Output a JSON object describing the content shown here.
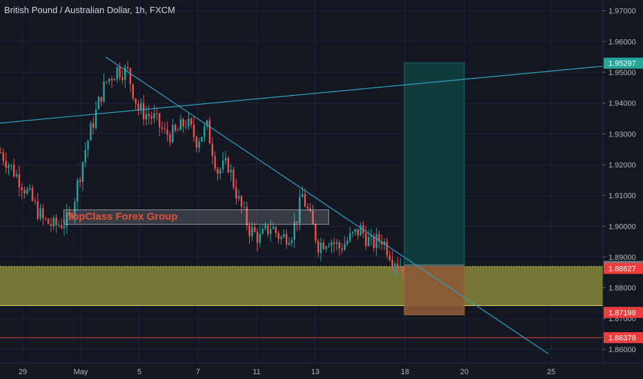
{
  "header": {
    "title": "British Pound / Australian Dollar, 1h, FXCM"
  },
  "watermark": {
    "label": "TopClass Forex Group"
  },
  "colors": {
    "background": "#131722",
    "grid": "#1f2535",
    "axis_text": "#b2b5be",
    "candle_up": "#26a69a",
    "candle_down": "#ef5350",
    "trendline": "#2fa3c4",
    "zone_fill": "#8b8738",
    "zone_border": "#d8d466",
    "target_fill": "#0f3b3c",
    "target_border": "#1d6e6a",
    "stop_fill": "#8a5a35",
    "badge_green": "#26a69a",
    "badge_red": "#ef3c3c",
    "badge_grey": "#787b86",
    "hline_red": "#ef3c3c"
  },
  "chart_data": {
    "type": "candlestick",
    "title": "British Pound / Australian Dollar, 1h, FXCM",
    "xlabel": "",
    "ylabel": "",
    "x_ticks": [
      "29",
      "May",
      "5",
      "7",
      "11",
      "13",
      "18",
      "20",
      "25"
    ],
    "y_ticks": [
      "1.97000",
      "1.96000",
      "1.95000",
      "1.94000",
      "1.93000",
      "1.92000",
      "1.91000",
      "1.90000",
      "1.89000",
      "1.88000",
      "1.87000",
      "1.86000"
    ],
    "ylim": [
      1.8555,
      1.9735
    ],
    "price_path": [
      [
        0,
        1.924
      ],
      [
        4,
        1.914
      ],
      [
        8,
        1.902
      ],
      [
        10,
        1.9
      ],
      [
        13,
        1.902
      ],
      [
        16,
        1.925
      ],
      [
        19,
        1.943
      ],
      [
        20,
        1.947
      ],
      [
        22,
        1.951
      ],
      [
        24,
        1.95
      ],
      [
        26,
        1.938
      ],
      [
        29,
        1.935
      ],
      [
        31,
        1.93
      ],
      [
        33,
        1.93
      ],
      [
        35,
        1.934
      ],
      [
        37,
        1.928
      ],
      [
        39,
        1.932
      ],
      [
        41,
        1.918
      ],
      [
        43,
        1.92
      ],
      [
        45,
        1.908
      ],
      [
        47,
        1.899
      ],
      [
        49,
        1.896
      ],
      [
        51,
        1.9
      ],
      [
        53,
        1.896
      ],
      [
        55,
        1.898
      ],
      [
        56,
        1.903
      ],
      [
        57,
        1.91
      ],
      [
        58,
        1.905
      ],
      [
        60,
        1.894
      ],
      [
        62,
        1.896
      ],
      [
        64,
        1.893
      ],
      [
        66,
        1.896
      ],
      [
        68,
        1.899
      ],
      [
        70,
        1.894
      ],
      [
        72,
        1.896
      ],
      [
        74,
        1.89
      ],
      [
        76,
        1.887
      ]
    ],
    "annotations": {
      "watermark_box": {
        "text": "TopClass Forex Group",
        "price_top": 1.9055,
        "price_bottom": 1.9005
      },
      "demand_zone": {
        "price_top": 1.8869,
        "price_bottom": 1.8742
      },
      "long_position": {
        "entry": 1.8869,
        "target": 1.9531,
        "stop": 1.8712
      },
      "horizontal_line": {
        "price": 1.86378
      },
      "trendlines": [
        {
          "name": "ascending",
          "from": {
            "x": "29",
            "y": 1.9335
          },
          "to": {
            "x": "25",
            "y": 1.952
          }
        },
        {
          "name": "descending",
          "from": {
            "x": "May",
            "y": 1.955
          },
          "to": {
            "x": "25",
            "y": 1.8585
          }
        }
      ]
    },
    "price_labels": [
      {
        "value": "1.95297",
        "color": "#26a69a"
      },
      {
        "value": "1.88692",
        "color": "#787b86"
      },
      {
        "value": "1.88627",
        "color": "#ef3c3c"
      },
      {
        "value": "1.87198",
        "color": "#ef3c3c"
      },
      {
        "value": "1.86378",
        "color": "#ef3c3c"
      }
    ]
  }
}
